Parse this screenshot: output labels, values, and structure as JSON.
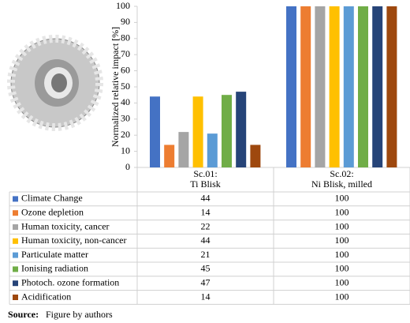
{
  "chart_data": {
    "type": "bar",
    "y_label": "Normalized relative impact [%]",
    "categories": [
      [
        "Sc.01:",
        "Ti Blisk"
      ],
      [
        "Sc.02:",
        "Ni Blisk, milled"
      ]
    ],
    "series": [
      {
        "name": "Climate Change",
        "color": "#4472c4",
        "values": [
          44,
          100
        ]
      },
      {
        "name": "Ozone depletion",
        "color": "#ed7d31",
        "values": [
          14,
          100
        ]
      },
      {
        "name": "Human toxicity, cancer",
        "color": "#a5a5a5",
        "values": [
          22,
          100
        ]
      },
      {
        "name": "Human toxicity, non-cancer",
        "color": "#ffc000",
        "values": [
          44,
          100
        ]
      },
      {
        "name": "Particulate matter",
        "color": "#5b9bd5",
        "values": [
          21,
          100
        ]
      },
      {
        "name": "Ionising radiation",
        "color": "#70ad47",
        "values": [
          45,
          100
        ]
      },
      {
        "name": "Photoch. ozone formation",
        "color": "#264478",
        "values": [
          47,
          100
        ]
      },
      {
        "name": "Acidification",
        "color": "#9e480e",
        "values": [
          14,
          100
        ]
      }
    ],
    "ylim": [
      0,
      100
    ],
    "yticks": [
      0,
      10,
      20,
      30,
      40,
      50,
      60,
      70,
      80,
      90,
      100
    ]
  },
  "source": {
    "label": "Source:",
    "text": "Figure by authors"
  }
}
